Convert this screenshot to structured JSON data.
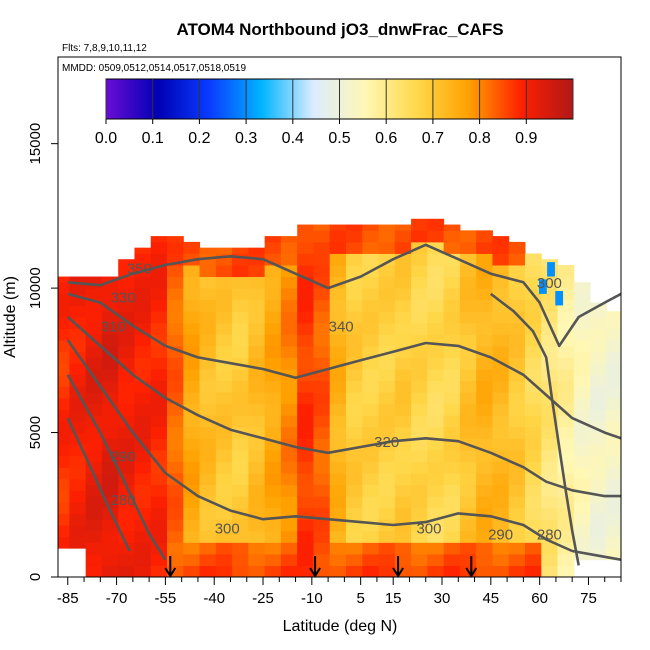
{
  "chart_data": {
    "type": "heatmap",
    "title": "ATOM4 Northbound jO3_dnwFrac_CAFS",
    "flights_note": "Flts: 7,8,9,10,11,12",
    "dates_note": "MMDD: 0509,0512,0514,0517,0518,0519",
    "xlabel": "Latitude (deg N)",
    "ylabel": "Altitude (m)",
    "xlim": [
      -88,
      85
    ],
    "ylim": [
      0,
      18000
    ],
    "x_ticks": [
      -85,
      -70,
      -55,
      -40,
      -25,
      -10,
      5,
      15,
      30,
      45,
      60,
      75
    ],
    "x_tick_labels": [
      "-85",
      "-70",
      "-55",
      "-40",
      "-25",
      "-10",
      "5",
      "15",
      "30",
      "45",
      "60",
      "75"
    ],
    "y_ticks": [
      0,
      5000,
      10000,
      15000
    ],
    "y_tick_labels": [
      "0",
      "5000",
      "10000",
      "15000"
    ],
    "colorbar": {
      "min": 0.0,
      "max": 1.0,
      "tick_labels": [
        "0.0",
        "0.1",
        "0.2",
        "0.3",
        "0.4",
        "0.5",
        "0.6",
        "0.7",
        "0.8",
        "0.9"
      ],
      "colors": [
        "#6a0dd6",
        "#0000b4",
        "#0a3cff",
        "#00b4ff",
        "#dcecff",
        "#fff7b4",
        "#ffd84a",
        "#ffa000",
        "#ff2000",
        "#b01818"
      ]
    },
    "profile_arrows_lat": [
      -53.5,
      -9,
      16.5,
      39
    ],
    "contour_labels": [
      {
        "text": "350",
        "lat": -63,
        "alt": 10500
      },
      {
        "text": "330",
        "lat": -68,
        "alt": 9500
      },
      {
        "text": "310",
        "lat": -71,
        "alt": 8500
      },
      {
        "text": "340",
        "lat": -1,
        "alt": 8500
      },
      {
        "text": "320",
        "lat": 13,
        "alt": 4500
      },
      {
        "text": "290",
        "lat": -68,
        "alt": 4000
      },
      {
        "text": "280",
        "lat": -68,
        "alt": 2500
      },
      {
        "text": "300",
        "lat": -36,
        "alt": 1500
      },
      {
        "text": "300",
        "lat": 26,
        "alt": 1500
      },
      {
        "text": "290",
        "lat": 48,
        "alt": 1300
      },
      {
        "text": "280",
        "lat": 63,
        "alt": 1300
      },
      {
        "text": "300",
        "lat": 63,
        "alt": 10000
      }
    ],
    "columns": [
      {
        "lat": -87,
        "top": 10400,
        "v": 0.88
      },
      {
        "lat": -82,
        "top": 10400,
        "v": 0.9
      },
      {
        "lat": -77,
        "top": 10400,
        "v": 0.92
      },
      {
        "lat": -72,
        "top": 10400,
        "v": 0.93
      },
      {
        "lat": -67,
        "top": 11000,
        "v": 0.91
      },
      {
        "lat": -62,
        "top": 11400,
        "v": 0.9
      },
      {
        "lat": -57,
        "top": 11800,
        "v": 0.89
      },
      {
        "lat": -52,
        "top": 11800,
        "v": 0.83
      },
      {
        "lat": -47,
        "top": 11600,
        "v": 0.76
      },
      {
        "lat": -42,
        "top": 11400,
        "v": 0.72
      },
      {
        "lat": -37,
        "top": 11400,
        "v": 0.7
      },
      {
        "lat": -32,
        "top": 11400,
        "v": 0.69
      },
      {
        "lat": -27,
        "top": 11400,
        "v": 0.72
      },
      {
        "lat": -22,
        "top": 11800,
        "v": 0.76
      },
      {
        "lat": -17,
        "top": 11800,
        "v": 0.8
      },
      {
        "lat": -12,
        "top": 12200,
        "v": 0.87
      },
      {
        "lat": -7,
        "top": 12200,
        "v": 0.84
      },
      {
        "lat": -2,
        "top": 12200,
        "v": 0.74
      },
      {
        "lat": 3,
        "top": 12200,
        "v": 0.69
      },
      {
        "lat": 8,
        "top": 12200,
        "v": 0.68
      },
      {
        "lat": 13,
        "top": 12200,
        "v": 0.68
      },
      {
        "lat": 18,
        "top": 12200,
        "v": 0.69
      },
      {
        "lat": 23,
        "top": 12400,
        "v": 0.67
      },
      {
        "lat": 28,
        "top": 12400,
        "v": 0.66
      },
      {
        "lat": 33,
        "top": 12200,
        "v": 0.67
      },
      {
        "lat": 38,
        "top": 12000,
        "v": 0.71
      },
      {
        "lat": 43,
        "top": 12000,
        "v": 0.74
      },
      {
        "lat": 48,
        "top": 11800,
        "v": 0.73
      },
      {
        "lat": 53,
        "top": 11600,
        "v": 0.7
      },
      {
        "lat": 58,
        "top": 11200,
        "v": 0.66
      },
      {
        "lat": 63,
        "top": 11000,
        "v": 0.62
      },
      {
        "lat": 68,
        "top": 10800,
        "v": 0.58
      },
      {
        "lat": 73,
        "top": 10200,
        "v": 0.54
      },
      {
        "lat": 78,
        "top": 9500,
        "v": 0.52
      },
      {
        "lat": 83,
        "top": 9200,
        "v": 0.52
      }
    ]
  }
}
